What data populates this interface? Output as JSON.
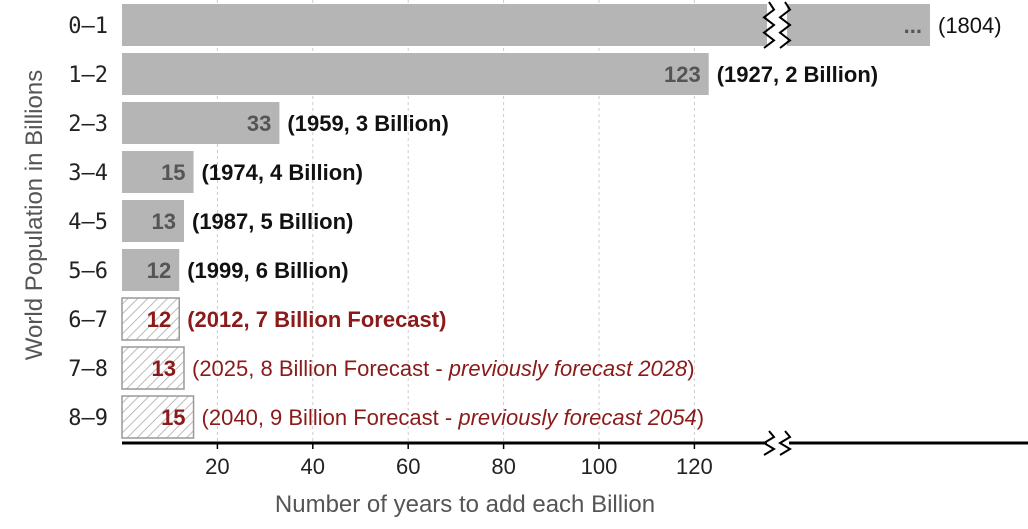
{
  "chart_data": {
    "type": "bar",
    "orientation": "horizontal",
    "ylabel": "World Population in Billions",
    "xlabel": "Number of years to add each Billion",
    "xlim": [
      0,
      130
    ],
    "xticks": [
      20,
      40,
      60,
      80,
      100,
      120
    ],
    "axis_break": true,
    "grid": true,
    "categories": [
      "0–1",
      "1–2",
      "2–3",
      "3–4",
      "4–5",
      "5–6",
      "6–7",
      "7–8",
      "8–9"
    ],
    "values": [
      null,
      123,
      33,
      15,
      13,
      12,
      12,
      13,
      15
    ],
    "value_labels": [
      "...",
      "123",
      "33",
      "15",
      "13",
      "12",
      "12",
      "13",
      "15"
    ],
    "forecast": [
      false,
      false,
      false,
      false,
      false,
      false,
      true,
      true,
      true
    ],
    "annotations": [
      {
        "parts": [
          {
            "text": "(1804)",
            "style": "plain"
          }
        ]
      },
      {
        "parts": [
          {
            "text": "(1927, 2 Billion)",
            "style": "plain-bold"
          }
        ]
      },
      {
        "parts": [
          {
            "text": "(1959, 3 Billion)",
            "style": "plain-bold"
          }
        ]
      },
      {
        "parts": [
          {
            "text": "(1974, 4 Billion)",
            "style": "plain-bold"
          }
        ]
      },
      {
        "parts": [
          {
            "text": "(1987, 5 Billion)",
            "style": "plain-bold"
          }
        ]
      },
      {
        "parts": [
          {
            "text": "(1999, 6 Billion)",
            "style": "plain-bold"
          }
        ]
      },
      {
        "parts": [
          {
            "text": "(2012, 7 Billion Forecast)",
            "style": "forecast-bold"
          }
        ]
      },
      {
        "parts": [
          {
            "text": "(2025, 8 Billion Forecast - ",
            "style": "forecast"
          },
          {
            "text": "previously forecast 2028",
            "style": "forecast-italic"
          },
          {
            "text": ")",
            "style": "forecast"
          }
        ]
      },
      {
        "parts": [
          {
            "text": "(2040, 9 Billion Forecast - ",
            "style": "forecast"
          },
          {
            "text": "previously forecast 2054",
            "style": "forecast-italic"
          },
          {
            "text": ")",
            "style": "forecast"
          }
        ]
      }
    ],
    "colors": {
      "bar": "#b5b5b5",
      "forecast_text": "#8b1a1a",
      "axis": "#000000",
      "grid": "#cccccc"
    }
  }
}
